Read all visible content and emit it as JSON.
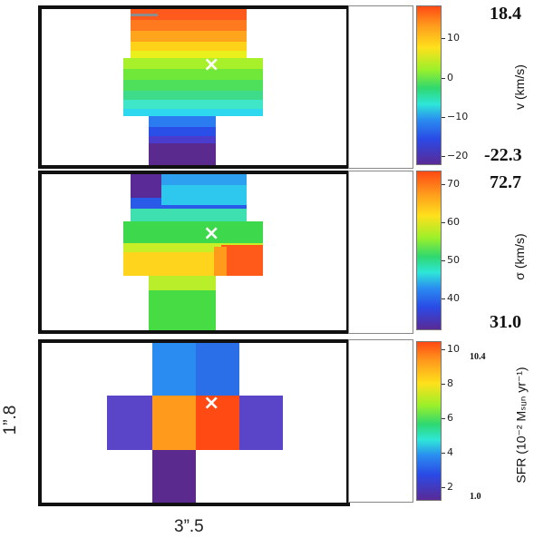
{
  "panels": [
    {
      "id": "velocity",
      "colorbar_label": "v (km/s)",
      "max_label": "18.4",
      "min_label": "-22.3",
      "ticks": [
        "10",
        "0",
        "−10",
        "−20"
      ],
      "center_marker": "×"
    },
    {
      "id": "dispersion",
      "colorbar_label": "σ (km/s)",
      "max_label": "72.7",
      "min_label": "31.0",
      "ticks": [
        "70",
        "60",
        "50",
        "40"
      ],
      "center_marker": "×"
    },
    {
      "id": "sfr",
      "colorbar_label": "SFR (10⁻² Mₛᵤₙ yr⁻¹)",
      "max_label": "10.4",
      "min_label": "1.0",
      "ticks": [
        "10",
        "8",
        "6",
        "4",
        "2"
      ],
      "center_marker": "×"
    }
  ],
  "size_labels": {
    "height": "1”.8",
    "width": "3”.5"
  },
  "colors": {
    "frame": "#111111",
    "marker": "#ffffff",
    "scalebar": "#8d8d8d"
  }
}
